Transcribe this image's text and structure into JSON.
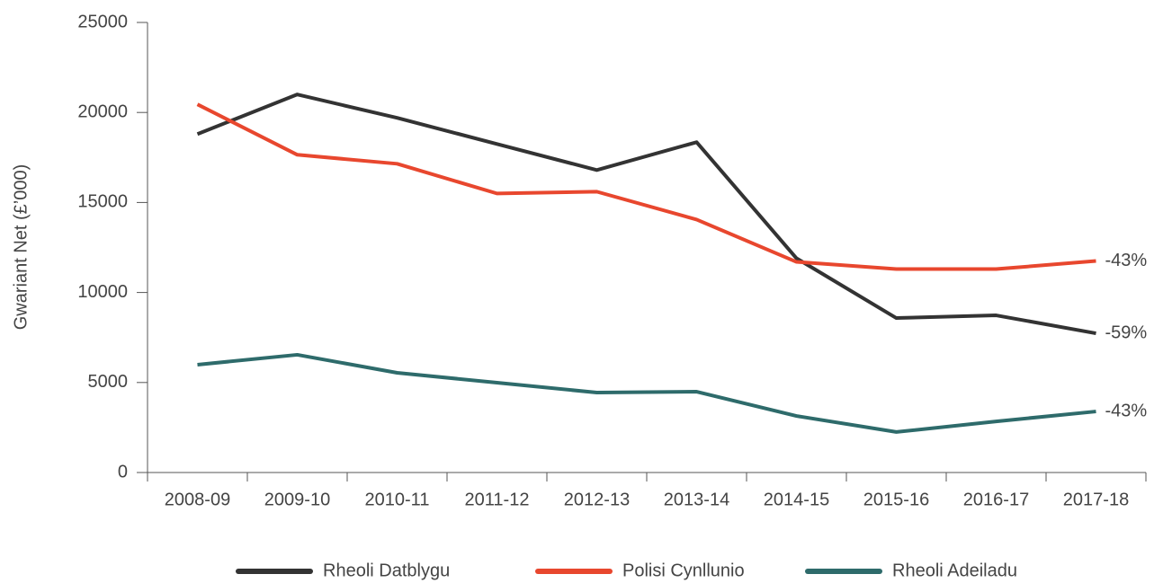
{
  "chart_data": {
    "type": "line",
    "y_label": "Gwariant Net (£’000)",
    "categories": [
      "2008-09",
      "2009-10",
      "2010-11",
      "2011-12",
      "2012-13",
      "2013-14",
      "2014-15",
      "2015-16",
      "2016-17",
      "2017-18"
    ],
    "series": [
      {
        "name": "Rheoli Datblygu",
        "color": "#333333",
        "end_label": "-59%",
        "values": [
          18800,
          21000,
          19700,
          18250,
          16800,
          18350,
          11900,
          8580,
          8730,
          7730
        ]
      },
      {
        "name": "Polisi Cynllunio",
        "color": "#e8472e",
        "end_label": "-43%",
        "values": [
          20450,
          17650,
          17150,
          15500,
          15600,
          14050,
          11700,
          11300,
          11300,
          11750
        ]
      },
      {
        "name": "Rheoli Adeiladu",
        "color": "#2e6b6b",
        "end_label": "-43%",
        "values": [
          5990,
          6540,
          5540,
          4990,
          4440,
          4490,
          3140,
          2250,
          2840,
          3390
        ]
      }
    ],
    "ylim": [
      0,
      25000
    ],
    "yticks": [
      0,
      5000,
      10000,
      15000,
      20000,
      25000
    ],
    "grid": false,
    "legend": "bottom"
  }
}
